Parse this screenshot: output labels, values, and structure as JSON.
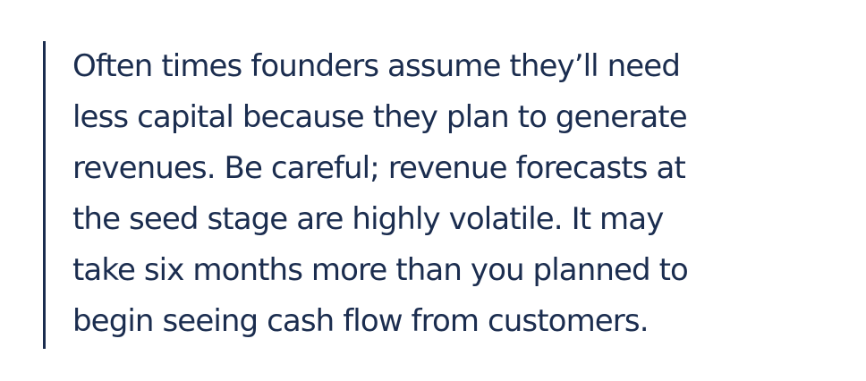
{
  "quote": {
    "lines": [
      "Often times founders assume they’ll need",
      "less capital because they plan to generate",
      "revenues. Be careful; revenue forecasts at",
      "the seed stage are highly volatile. It may",
      "take six months more than you planned to",
      "begin seeing cash flow from customers."
    ]
  },
  "colors": {
    "text": "#1b2d4f",
    "rule": "#1b2d4f",
    "background": "#ffffff"
  }
}
